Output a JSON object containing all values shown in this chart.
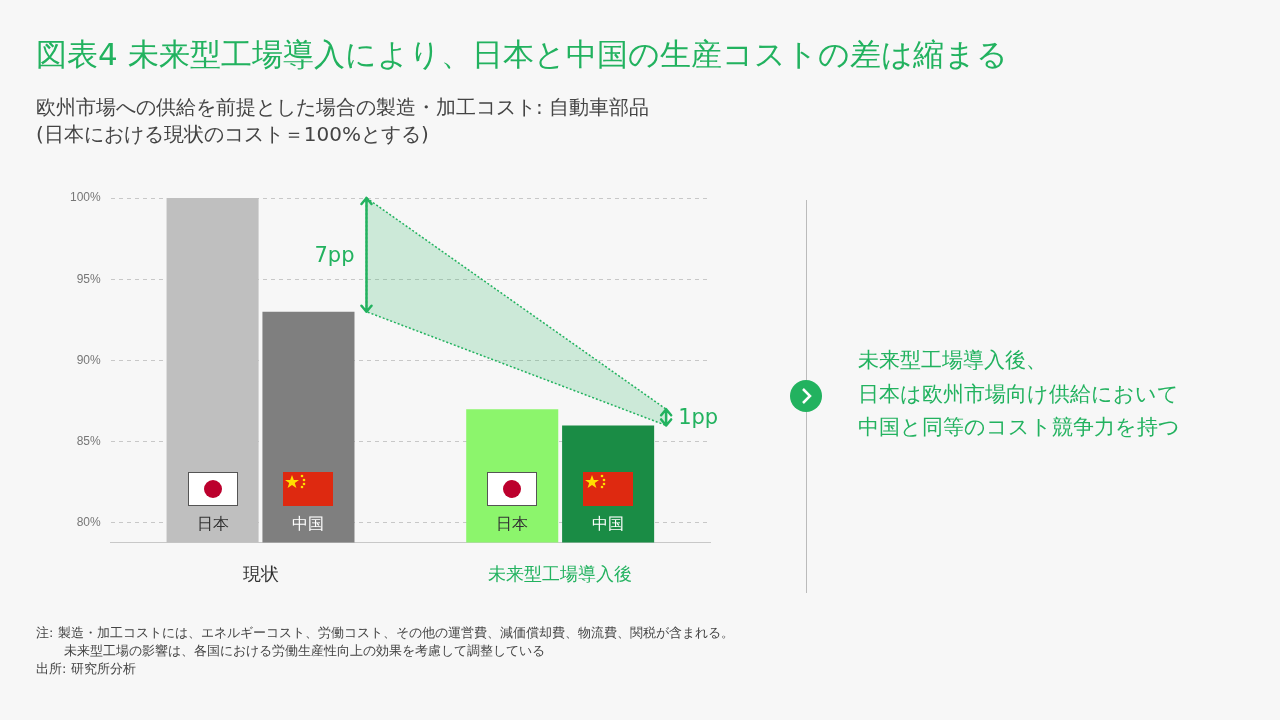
{
  "chart_data": {
    "type": "bar",
    "title": "図表4  未来型工場導入により、日本と中国の生産コストの差は縮まる",
    "subtitle": "欧州市場への供給を前提とした場合の製造・加工コスト: 自動車部品\n(日本における現状のコスト＝100%とする)",
    "categories": [
      "現状",
      "未来型工場導入後"
    ],
    "series": [
      {
        "name": "日本",
        "colors": [
          "#bfbfbf",
          "#8cf56c"
        ],
        "values": [
          100,
          87
        ]
      },
      {
        "name": "中国",
        "colors": [
          "#7f7f7f",
          "#1a8c45"
        ],
        "values": [
          93,
          86
        ]
      }
    ],
    "ylim": [
      78.8,
      100
    ],
    "yticks": [
      {
        "value": 80,
        "label": "80%"
      },
      {
        "value": 85,
        "label": "85%"
      },
      {
        "value": 90,
        "label": "90%"
      },
      {
        "value": 95,
        "label": "95%"
      },
      {
        "value": 100,
        "label": "100%"
      }
    ],
    "grid": "y",
    "legend": false,
    "annotations": [
      "7pp",
      "1pp",
      "未来型工場導入後、",
      "日本は欧州市場向け供給において",
      "中国と同等のコスト競争力を持つ",
      "注: 製造・加工コストには、エネルギーコスト、労働コスト、その他の運営費、減価償却費、物流費、関税が含まれる。",
      "未来型工場の影響は、各国における労働生産性向上の効果を考慮して調整している",
      "出所: 研究所分析"
    ]
  }
}
